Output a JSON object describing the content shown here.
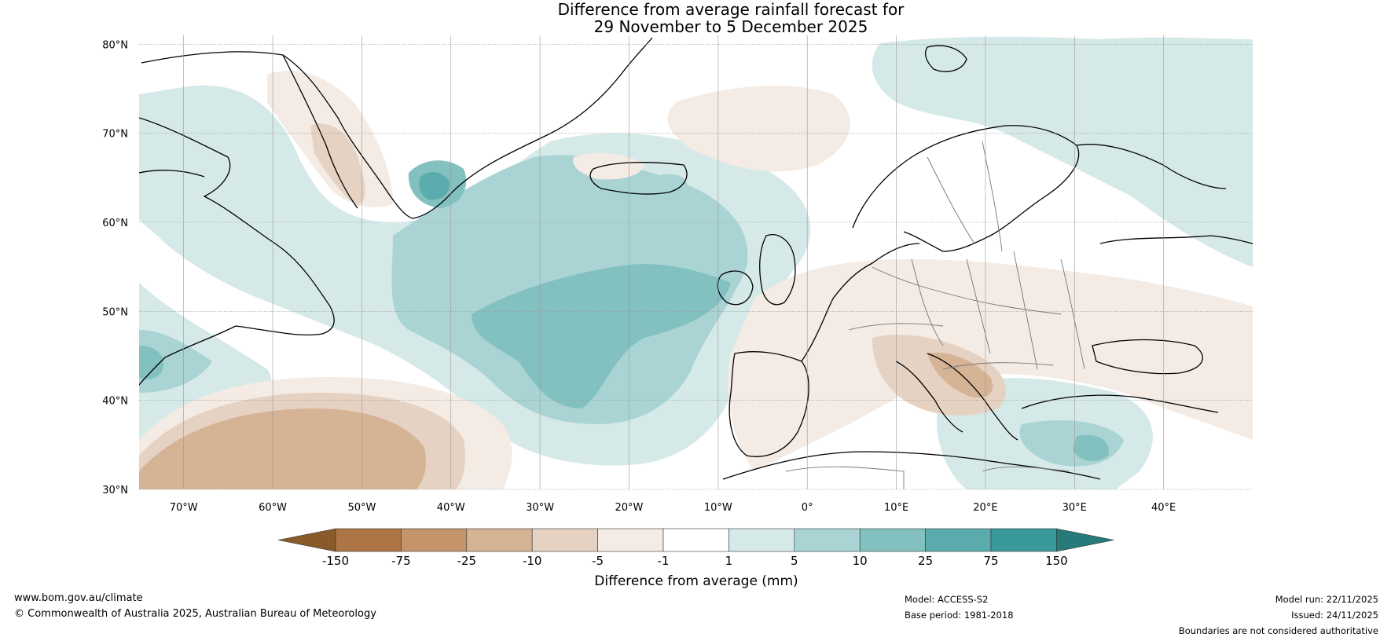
{
  "title": {
    "line1": "Difference from average rainfall forecast for",
    "line2": "29 November to 5 December 2025"
  },
  "map": {
    "lat_labels": [
      "80°N",
      "70°N",
      "60°N",
      "50°N",
      "40°N",
      "30°N"
    ],
    "lon_labels": [
      "70°W",
      "60°W",
      "50°W",
      "40°W",
      "30°W",
      "20°W",
      "10°W",
      "0°",
      "10°E",
      "20°E",
      "30°E",
      "40°E"
    ],
    "colors": {
      "dry_150": "#8b5a2b",
      "dry_75": "#ad7545",
      "dry_25": "#c4946a",
      "dry_10": "#d5b395",
      "dry_5": "#e6d2c2",
      "dry_1": "#f3ebe4",
      "neutral": "#ffffff",
      "wet_1": "#d6e9e9",
      "wet_5": "#aad4d4",
      "wet_10": "#83c0c0",
      "wet_25": "#5aacac",
      "wet_75": "#3a9999",
      "wet_150": "#267a7a",
      "land_outline": "#000000",
      "border": "#777777"
    }
  },
  "legend": {
    "ticks": [
      "-150",
      "-75",
      "-25",
      "-10",
      "-5",
      "-1",
      "1",
      "5",
      "10",
      "25",
      "75",
      "150"
    ],
    "label": "Difference from average (mm)"
  },
  "footer": {
    "website": "www.bom.gov.au/climate",
    "copyright": "© Commonwealth of Australia 2025, Australian Bureau of Meteorology",
    "model": "Model: ACCESS-S2",
    "base_period": "Base period: 1981-2018",
    "model_run": "Model run: 22/11/2025",
    "issued": "Issued: 24/11/2025",
    "disclaimer": "Boundaries are not considered authoritative"
  }
}
